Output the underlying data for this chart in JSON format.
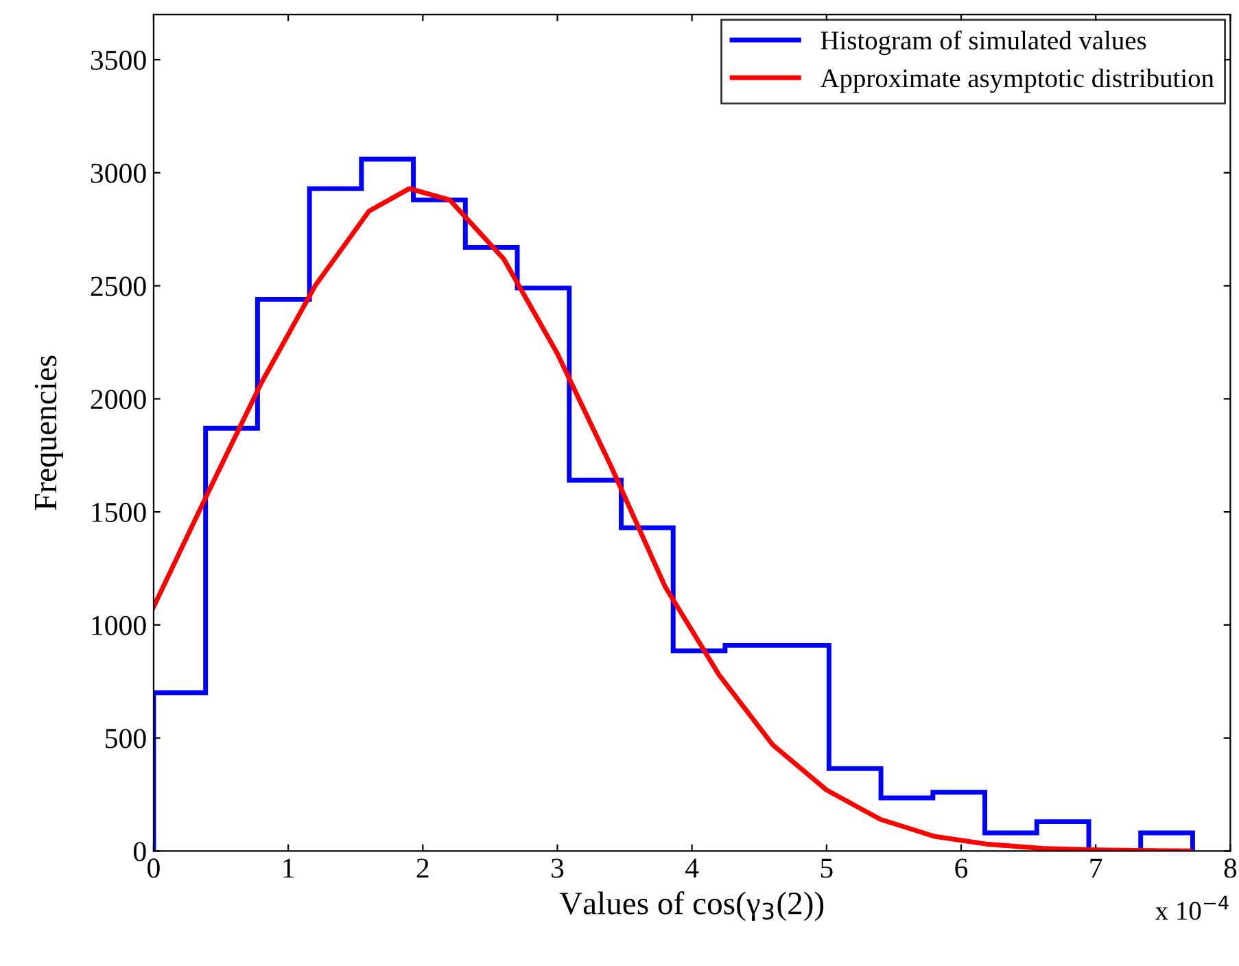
{
  "chart_data": {
    "type": "histogram",
    "xlabel": "Values of cos(γ$_{3}$(2))",
    "ylabel": "Frequencies",
    "annotations": [
      "x 10$^{−4}$"
    ],
    "xlim": [
      0,
      8
    ],
    "xticks": [
      0,
      1,
      2,
      3,
      4,
      5,
      6,
      7,
      8
    ],
    "ylim": [
      0,
      3700
    ],
    "yticks": [
      0,
      500,
      1000,
      1500,
      2000,
      2500,
      3000,
      3500
    ],
    "grid": false,
    "legend": "top right",
    "series": [
      {
        "name": "Histogram of simulated values",
        "color": "#0000ff",
        "bins": [
          0,
          0.386,
          0.772,
          1.158,
          1.544,
          1.93,
          2.316,
          2.702,
          3.088,
          3.474,
          3.86,
          4.246,
          4.632,
          5.018,
          5.404,
          5.79,
          6.176,
          6.562,
          6.948,
          7.334,
          7.72
        ],
        "values": [
          700,
          1870,
          2440,
          2930,
          3060,
          2880,
          2670,
          2490,
          1640,
          1430,
          885,
          910,
          910,
          365,
          235,
          260,
          80,
          130,
          0,
          80
        ]
      },
      {
        "type": "line",
        "name": "Approximate asymptotic distribution",
        "color": "#ff0000",
        "x": [
          0,
          0.4,
          0.8,
          1.2,
          1.6,
          1.9,
          2.2,
          2.6,
          3.0,
          3.4,
          3.8,
          4.2,
          4.6,
          5.0,
          5.4,
          5.8,
          6.2,
          6.6,
          7.0,
          7.4,
          7.7
        ],
        "values": [
          1080,
          1580,
          2070,
          2500,
          2830,
          2930,
          2880,
          2620,
          2200,
          1700,
          1170,
          780,
          470,
          270,
          140,
          65,
          30,
          12,
          5,
          2,
          1
        ]
      }
    ]
  }
}
